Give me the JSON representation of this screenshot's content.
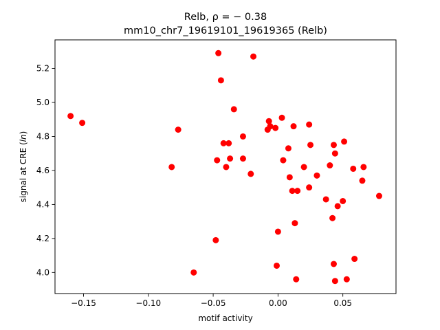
{
  "chart_data": {
    "type": "scatter",
    "title_line1": "Relb, ρ = − 0.38",
    "title_line2": "mm10_chr7_19619101_19619365 (Relb)",
    "xlabel": "motif activity",
    "ylabel_prefix": "signal at CRE (",
    "ylabel_italic": "ln",
    "ylabel_suffix": ")",
    "xlim": [
      -0.172,
      0.091
    ],
    "ylim": [
      3.876,
      5.368
    ],
    "xticks": [
      -0.15,
      -0.1,
      -0.05,
      0.0,
      0.05
    ],
    "xtick_labels": [
      "−0.15",
      "−0.10",
      "−0.05",
      "0.00",
      "0.05"
    ],
    "yticks": [
      4.0,
      4.2,
      4.4,
      4.6,
      4.8,
      5.0,
      5.2
    ],
    "ytick_labels": [
      "4.0",
      "4.2",
      "4.4",
      "4.6",
      "4.8",
      "5.0",
      "5.2"
    ],
    "grid": false,
    "marker_color": "#ff0000",
    "points": [
      {
        "x": -0.16,
        "y": 4.92
      },
      {
        "x": -0.151,
        "y": 4.88
      },
      {
        "x": -0.082,
        "y": 4.62
      },
      {
        "x": -0.077,
        "y": 4.84
      },
      {
        "x": -0.065,
        "y": 4.0
      },
      {
        "x": -0.048,
        "y": 4.19
      },
      {
        "x": -0.047,
        "y": 4.66
      },
      {
        "x": -0.046,
        "y": 5.29
      },
      {
        "x": -0.044,
        "y": 5.13
      },
      {
        "x": -0.042,
        "y": 4.76
      },
      {
        "x": -0.04,
        "y": 4.62
      },
      {
        "x": -0.038,
        "y": 4.76
      },
      {
        "x": -0.037,
        "y": 4.67
      },
      {
        "x": -0.034,
        "y": 4.96
      },
      {
        "x": -0.027,
        "y": 4.8
      },
      {
        "x": -0.027,
        "y": 4.67
      },
      {
        "x": -0.021,
        "y": 4.58
      },
      {
        "x": -0.019,
        "y": 5.27
      },
      {
        "x": -0.008,
        "y": 4.84
      },
      {
        "x": -0.007,
        "y": 4.89
      },
      {
        "x": -0.006,
        "y": 4.86
      },
      {
        "x": -0.002,
        "y": 4.85
      },
      {
        "x": -0.001,
        "y": 4.04
      },
      {
        "x": 0.0,
        "y": 4.24
      },
      {
        "x": 0.003,
        "y": 4.91
      },
      {
        "x": 0.004,
        "y": 4.66
      },
      {
        "x": 0.008,
        "y": 4.73
      },
      {
        "x": 0.009,
        "y": 4.56
      },
      {
        "x": 0.011,
        "y": 4.48
      },
      {
        "x": 0.012,
        "y": 4.86
      },
      {
        "x": 0.013,
        "y": 4.29
      },
      {
        "x": 0.014,
        "y": 3.96
      },
      {
        "x": 0.015,
        "y": 4.48
      },
      {
        "x": 0.02,
        "y": 4.62
      },
      {
        "x": 0.024,
        "y": 4.87
      },
      {
        "x": 0.024,
        "y": 4.5
      },
      {
        "x": 0.025,
        "y": 4.75
      },
      {
        "x": 0.03,
        "y": 4.57
      },
      {
        "x": 0.037,
        "y": 4.43
      },
      {
        "x": 0.04,
        "y": 4.63
      },
      {
        "x": 0.042,
        "y": 4.32
      },
      {
        "x": 0.043,
        "y": 4.75
      },
      {
        "x": 0.043,
        "y": 4.05
      },
      {
        "x": 0.044,
        "y": 3.95
      },
      {
        "x": 0.044,
        "y": 4.7
      },
      {
        "x": 0.046,
        "y": 4.39
      },
      {
        "x": 0.05,
        "y": 4.42
      },
      {
        "x": 0.051,
        "y": 4.77
      },
      {
        "x": 0.053,
        "y": 3.96
      },
      {
        "x": 0.058,
        "y": 4.61
      },
      {
        "x": 0.059,
        "y": 4.08
      },
      {
        "x": 0.065,
        "y": 4.54
      },
      {
        "x": 0.066,
        "y": 4.62
      },
      {
        "x": 0.078,
        "y": 4.45
      }
    ]
  }
}
